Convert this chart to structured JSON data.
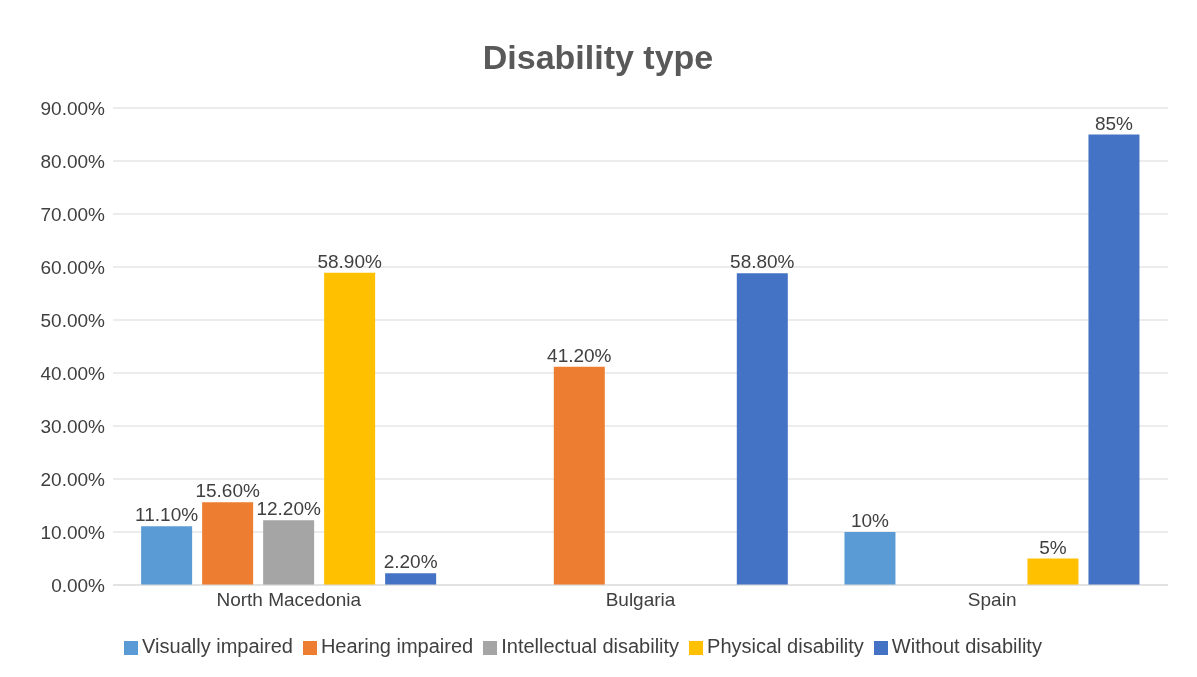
{
  "chart_data": {
    "type": "bar",
    "title": "Disability type",
    "categories": [
      "North Macedonia",
      "Bulgaria",
      "Spain"
    ],
    "series": [
      {
        "name": "Visually impaired",
        "color": "#5b9bd5",
        "values": [
          11.1,
          null,
          10
        ],
        "value_labels": [
          "11.10%",
          null,
          "10%"
        ]
      },
      {
        "name": "Hearing impaired",
        "color": "#ed7d31",
        "values": [
          15.6,
          41.2,
          null
        ],
        "value_labels": [
          "15.60%",
          "41.20%",
          null
        ]
      },
      {
        "name": "Intellectual disability",
        "color": "#a5a5a5",
        "values": [
          12.2,
          null,
          null
        ],
        "value_labels": [
          "12.20%",
          null,
          null
        ]
      },
      {
        "name": "Physical disability",
        "color": "#ffc000",
        "values": [
          58.9,
          null,
          5
        ],
        "value_labels": [
          "58.90%",
          null,
          "5%"
        ]
      },
      {
        "name": "Without disability",
        "color": "#4472c4",
        "values": [
          2.2,
          58.8,
          85
        ],
        "value_labels": [
          "2.20%",
          "58.80%",
          "85%"
        ]
      }
    ],
    "ylim": [
      0,
      90
    ],
    "yticks": [
      {
        "value": 0,
        "label": "0.00%"
      },
      {
        "value": 10,
        "label": "10.00%"
      },
      {
        "value": 20,
        "label": "20.00%"
      },
      {
        "value": 30,
        "label": "30.00%"
      },
      {
        "value": 40,
        "label": "40.00%"
      },
      {
        "value": 50,
        "label": "50.00%"
      },
      {
        "value": 60,
        "label": "60.00%"
      },
      {
        "value": 70,
        "label": "70.00%"
      },
      {
        "value": 80,
        "label": "80.00%"
      },
      {
        "value": 90,
        "label": "90.00%"
      }
    ],
    "grid": "y",
    "legend": "bottom"
  }
}
